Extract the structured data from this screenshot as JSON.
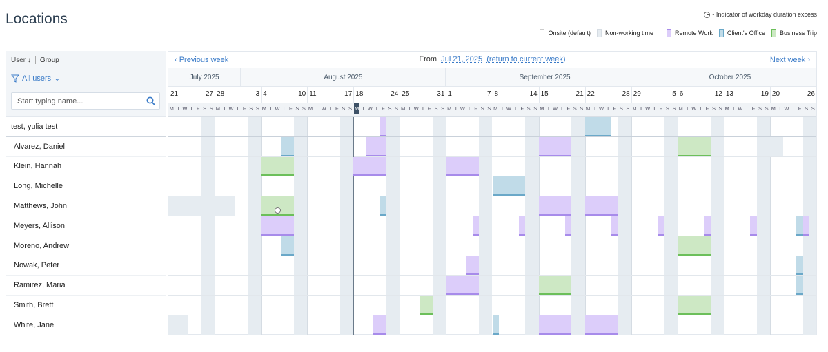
{
  "page": {
    "title": "Locations"
  },
  "indicator_note": "- Indicator of workday duration excess",
  "legend": [
    {
      "label": "Onsite (default)",
      "color": "#ffffff",
      "border": "#cccccc"
    },
    {
      "label": "Non-working time",
      "color": "#e6ecf1",
      "border": "#d5dce3"
    },
    {
      "label": "Remote Work",
      "color": "#dccdfa",
      "border": "#a78bea"
    },
    {
      "label": "Client's Office",
      "color": "#c0dbe8",
      "border": "#6aa8c8"
    },
    {
      "label": "Business Trip",
      "color": "#cde8c4",
      "border": "#6cbf5a"
    }
  ],
  "left": {
    "sort_label": "User",
    "sort_arrow": "↓",
    "group_label": "Group",
    "filter_label": "All users",
    "filter_chevron": "⌄",
    "search_placeholder": "Start typing name...",
    "first_row": "test, yulia test",
    "users": [
      "Alvarez, Daniel",
      "Klein, Hannah",
      "Long, Michelle",
      "Matthews, John",
      "Meyers, Allison",
      "Moreno, Andrew",
      "Nowak, Peter",
      "Ramirez, Maria",
      "Smith, Brett",
      "White, Jane"
    ]
  },
  "nav": {
    "prev": "‹ Previous week",
    "next": "Next week ›",
    "from": "From",
    "date": "Jul 21, 2025",
    "return": "(return to current week)"
  },
  "months": [
    {
      "label": "July 2025",
      "start": 0,
      "days": 11
    },
    {
      "label": "August 2025",
      "start": 11,
      "days": 31
    },
    {
      "label": "September 2025",
      "start": 42,
      "days": 30
    },
    {
      "label": "October 2025",
      "start": 72,
      "days": 26
    }
  ],
  "weeks": [
    {
      "start": "21",
      "end": "27"
    },
    {
      "start": "28",
      "end": "3"
    },
    {
      "start": "4",
      "end": "10"
    },
    {
      "start": "11",
      "end": "17"
    },
    {
      "start": "18",
      "end": "24"
    },
    {
      "start": "25",
      "end": "31"
    },
    {
      "start": "1",
      "end": "7"
    },
    {
      "start": "8",
      "end": "14"
    },
    {
      "start": "15",
      "end": "21"
    },
    {
      "start": "22",
      "end": "28"
    },
    {
      "start": "29",
      "end": "5"
    },
    {
      "start": "6",
      "end": "12"
    },
    {
      "start": "13",
      "end": "19"
    },
    {
      "start": "20",
      "end": "26"
    }
  ],
  "day_letters": [
    "M",
    "T",
    "W",
    "T",
    "F",
    "S",
    "S"
  ],
  "today_index": 28,
  "entries": [
    {
      "row": 0,
      "start": 32,
      "days": 1,
      "type": "remote"
    },
    {
      "row": 0,
      "start": 63,
      "days": 4,
      "type": "client"
    },
    {
      "row": 1,
      "start": 17,
      "days": 2,
      "type": "client"
    },
    {
      "row": 1,
      "start": 30,
      "days": 3,
      "type": "remote"
    },
    {
      "row": 1,
      "start": 56,
      "days": 5,
      "type": "remote"
    },
    {
      "row": 1,
      "start": 77,
      "days": 5,
      "type": "trip"
    },
    {
      "row": 2,
      "start": 14,
      "days": 5,
      "type": "trip"
    },
    {
      "row": 2,
      "start": 28,
      "days": 5,
      "type": "remote"
    },
    {
      "row": 2,
      "start": 42,
      "days": 5,
      "type": "remote"
    },
    {
      "row": 3,
      "start": 49,
      "days": 5,
      "type": "client"
    },
    {
      "row": 4,
      "start": 14,
      "days": 5,
      "type": "trip"
    },
    {
      "row": 4,
      "start": 32,
      "days": 1,
      "type": "client"
    },
    {
      "row": 4,
      "start": 56,
      "days": 5,
      "type": "remote"
    },
    {
      "row": 4,
      "start": 63,
      "days": 5,
      "type": "remote"
    },
    {
      "row": 5,
      "start": 14,
      "days": 5,
      "type": "remote"
    },
    {
      "row": 5,
      "start": 46,
      "days": 1,
      "type": "remote"
    },
    {
      "row": 5,
      "start": 53,
      "days": 1,
      "type": "remote"
    },
    {
      "row": 5,
      "start": 60,
      "days": 1,
      "type": "remote"
    },
    {
      "row": 5,
      "start": 67,
      "days": 1,
      "type": "remote"
    },
    {
      "row": 5,
      "start": 74,
      "days": 1,
      "type": "remote"
    },
    {
      "row": 5,
      "start": 81,
      "days": 1,
      "type": "remote"
    },
    {
      "row": 5,
      "start": 88,
      "days": 1,
      "type": "remote"
    },
    {
      "row": 5,
      "start": 95,
      "days": 1,
      "type": "client"
    },
    {
      "row": 5,
      "start": 96,
      "days": 1,
      "type": "remote"
    },
    {
      "row": 6,
      "start": 17,
      "days": 2,
      "type": "client"
    },
    {
      "row": 6,
      "start": 77,
      "days": 5,
      "type": "trip"
    },
    {
      "row": 7,
      "start": 45,
      "days": 2,
      "type": "remote"
    },
    {
      "row": 7,
      "start": 95,
      "days": 1,
      "type": "client"
    },
    {
      "row": 8,
      "start": 42,
      "days": 5,
      "type": "remote"
    },
    {
      "row": 8,
      "start": 56,
      "days": 5,
      "type": "trip"
    },
    {
      "row": 8,
      "start": 95,
      "days": 1,
      "type": "client"
    },
    {
      "row": 9,
      "start": 38,
      "days": 2,
      "type": "trip"
    },
    {
      "row": 9,
      "start": 77,
      "days": 5,
      "type": "trip"
    },
    {
      "row": 10,
      "start": 31,
      "days": 2,
      "type": "remote"
    },
    {
      "row": 10,
      "start": 49,
      "days": 1,
      "type": "client"
    },
    {
      "row": 10,
      "start": 56,
      "days": 5,
      "type": "remote"
    },
    {
      "row": 10,
      "start": 63,
      "days": 5,
      "type": "remote"
    }
  ],
  "nonwork_extra": [
    {
      "row": 4,
      "start": 0,
      "days": 10
    },
    {
      "row": 10,
      "start": 0,
      "days": 3
    },
    {
      "row": 1,
      "start": 91,
      "days": 2
    }
  ],
  "clock_markers": [
    {
      "row": 4,
      "day": 16
    }
  ]
}
